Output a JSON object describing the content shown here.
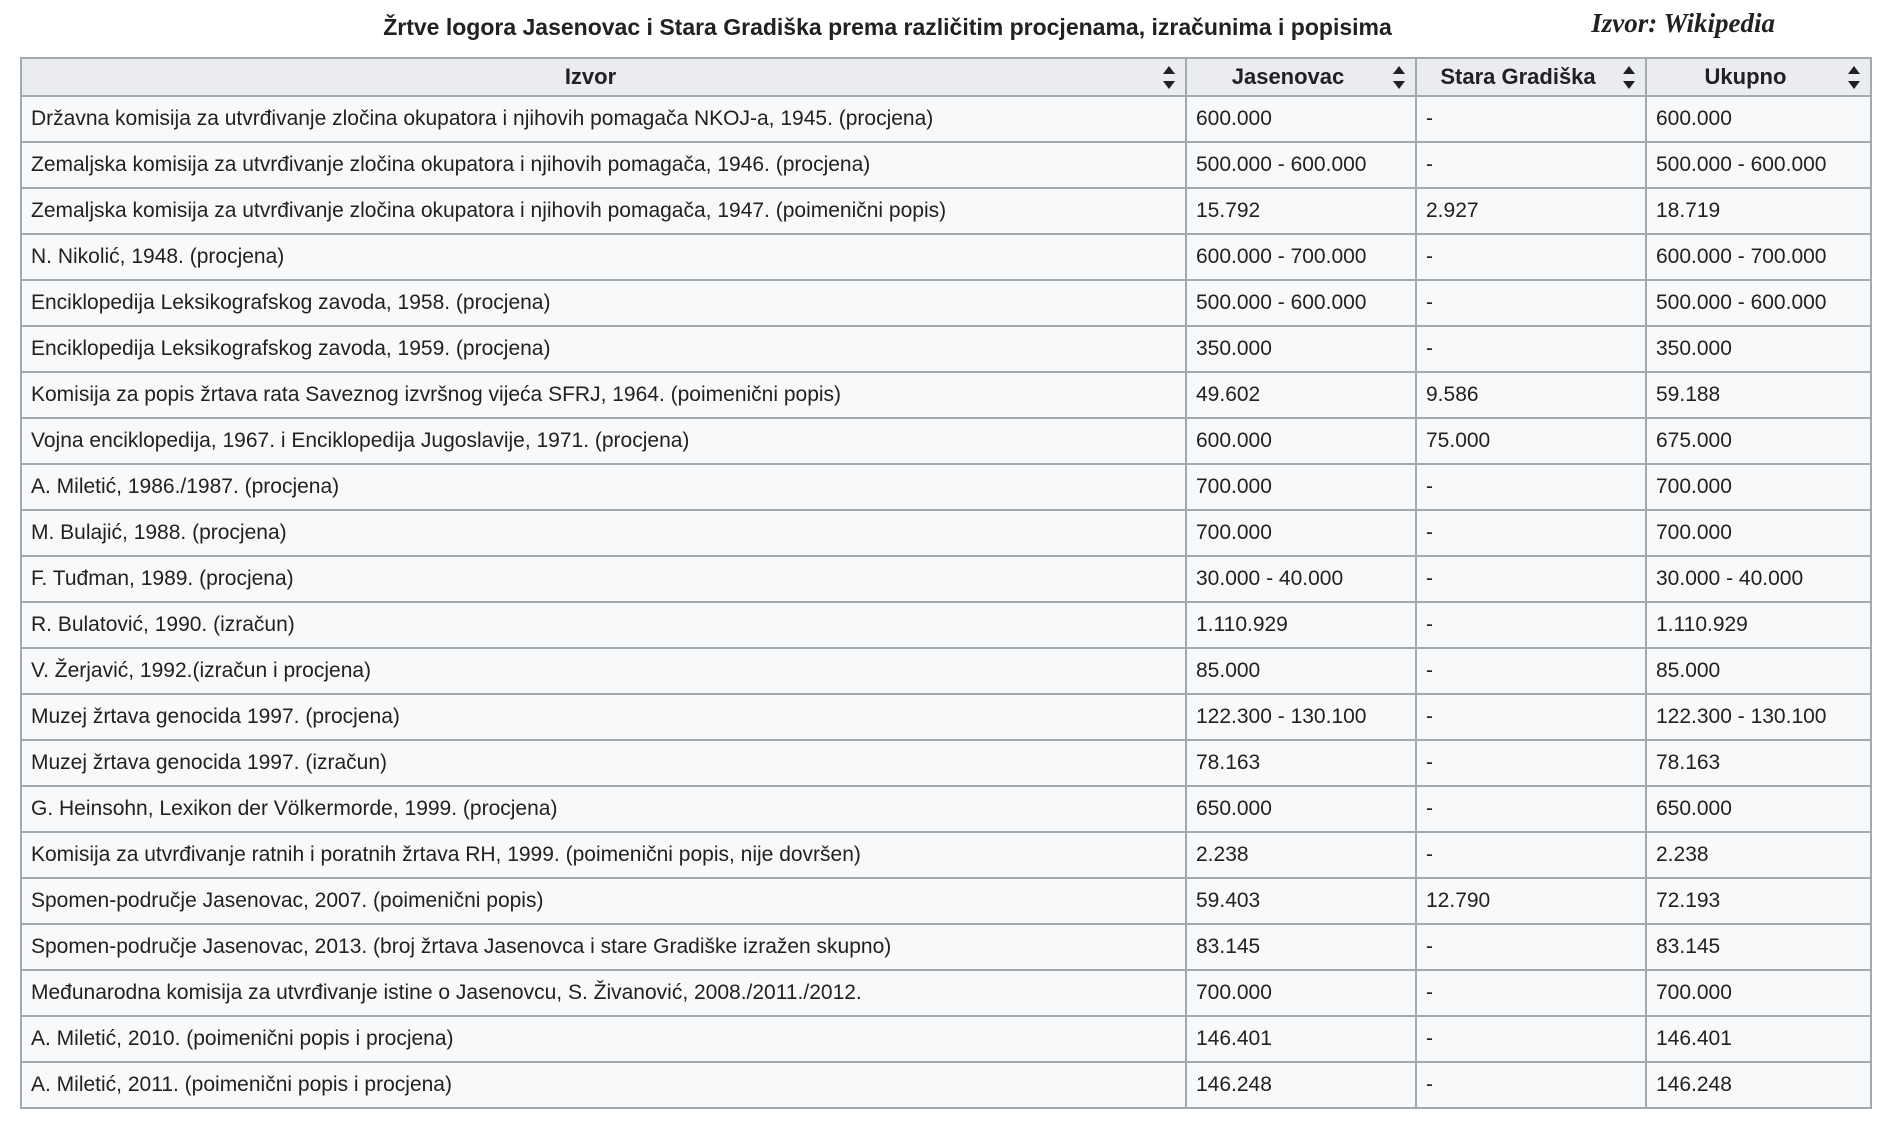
{
  "page": {
    "title": "Žrtve logora Jasenovac i Stara Gradiška prema različitim procjenama, izračunima i popisima",
    "source_note": "Izvor: Wikipedia"
  },
  "chart_data": {
    "type": "table",
    "title": "Žrtve logora Jasenovac i Stara Gradiška prema različitim procjenama, izračunima i popisima",
    "source": "Izvor: Wikipedia",
    "columns": [
      "Izvor",
      "Jasenovac",
      "Stara Gradiška",
      "Ukupno"
    ],
    "sortable_columns": true,
    "rows": [
      [
        "Državna komisija za utvrđivanje zločina okupatora i njihovih pomagača NKOJ-a, 1945. (procjena)",
        "600.000",
        "-",
        "600.000"
      ],
      [
        "Zemaljska komisija za utvrđivanje zločina okupatora i njihovih pomagača, 1946. (procjena)",
        "500.000 - 600.000",
        "-",
        "500.000 - 600.000"
      ],
      [
        "Zemaljska komisija za utvrđivanje zločina okupatora i njihovih pomagača, 1947. (poimenični popis)",
        "15.792",
        "2.927",
        "18.719"
      ],
      [
        "N. Nikolić, 1948. (procjena)",
        "600.000 - 700.000",
        "-",
        "600.000 - 700.000"
      ],
      [
        "Enciklopedija Leksikografskog zavoda, 1958. (procjena)",
        "500.000 - 600.000",
        "-",
        "500.000 - 600.000"
      ],
      [
        "Enciklopedija Leksikografskog zavoda, 1959. (procjena)",
        "350.000",
        "-",
        "350.000"
      ],
      [
        "Komisija za popis žrtava rata Saveznog izvršnog vijeća SFRJ, 1964. (poimenični popis)",
        "49.602",
        "9.586",
        "59.188"
      ],
      [
        "Vojna enciklopedija, 1967. i Enciklopedija Jugoslavije, 1971. (procjena)",
        "600.000",
        "75.000",
        "675.000"
      ],
      [
        "A. Miletić, 1986./1987. (procjena)",
        "700.000",
        "-",
        "700.000"
      ],
      [
        "M. Bulajić, 1988. (procjena)",
        "700.000",
        "-",
        "700.000"
      ],
      [
        "F. Tuđman, 1989. (procjena)",
        "30.000 - 40.000",
        "-",
        "30.000 - 40.000"
      ],
      [
        "R. Bulatović, 1990. (izračun)",
        "1.110.929",
        "-",
        "1.110.929"
      ],
      [
        "V. Žerjavić, 1992.(izračun i procjena)",
        "85.000",
        "-",
        "85.000"
      ],
      [
        "Muzej žrtava genocida 1997. (procjena)",
        "122.300 - 130.100",
        "-",
        "122.300 - 130.100"
      ],
      [
        "Muzej žrtava genocida 1997. (izračun)",
        "78.163",
        "-",
        "78.163"
      ],
      [
        "G. Heinsohn, Lexikon der Völkermorde, 1999. (procjena)",
        "650.000",
        "-",
        "650.000"
      ],
      [
        "Komisija za utvrđivanje ratnih i poratnih žrtava RH, 1999. (poimenični popis, nije dovršen)",
        "2.238",
        "-",
        "2.238"
      ],
      [
        "Spomen-područje Jasenovac, 2007. (poimenični popis)",
        "59.403",
        "12.790",
        "72.193"
      ],
      [
        "Spomen-područje Jasenovac, 2013. (broj žrtava Jasenovca i stare Gradiške izražen skupno)",
        "83.145",
        "-",
        "83.145"
      ],
      [
        "Međunarodna komisija za utvrđivanje istine o Jasenovcu, S. Živanović, 2008./2011./2012.",
        "700.000",
        "-",
        "700.000"
      ],
      [
        "A. Miletić, 2010. (poimenični popis i procjena)",
        "146.401",
        "-",
        "146.401"
      ],
      [
        "A. Miletić, 2011. (poimenični popis i procjena)",
        "146.248",
        "-",
        "146.248"
      ]
    ]
  },
  "colors": {
    "header_bg": "#eaecf0",
    "row_bg": "#f8f9fa",
    "border": "#a2a9b1",
    "text": "#202122"
  }
}
